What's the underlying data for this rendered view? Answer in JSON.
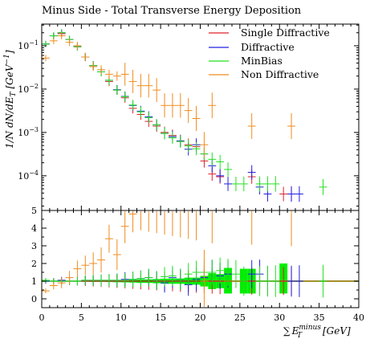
{
  "chart_data": {
    "type": "scatter",
    "title": "Minus Side - Total Transverse Energy Deposition",
    "xlabel": "∑E_T^minus [GeV]",
    "xlabel_sum": "∑",
    "xlabel_E": "E",
    "xlabel_sub": "T",
    "xlabel_sup": "minus",
    "xlabel_unit": "[GeV]",
    "ylabel": "1/N dN/dE_T [GeV^-1]",
    "ylabel_main": "1/N dN/dE",
    "ylabel_sub": "T",
    "ylabel_unit_open": " [GeV",
    "ylabel_sup": "−1",
    "ylabel_unit_close": "]",
    "xlim": [
      0,
      40
    ],
    "main_ylim_log10": [
      -4.8,
      -0.5
    ],
    "ratio_ylim": [
      -0.5,
      5
    ],
    "x_ticks": [
      "0",
      "5",
      "10",
      "15",
      "20",
      "25",
      "30",
      "35",
      "40"
    ],
    "x_tick_values": [
      0,
      5,
      10,
      15,
      20,
      25,
      30,
      35,
      40
    ],
    "main_y_ticks": [
      {
        "mant": "10",
        "exp": "−1",
        "log": -1
      },
      {
        "mant": "10",
        "exp": "−2",
        "log": -2
      },
      {
        "mant": "10",
        "exp": "−3",
        "log": -3
      },
      {
        "mant": "10",
        "exp": "−4",
        "log": -4
      }
    ],
    "ratio_y_ticks": [
      "0",
      "1",
      "2",
      "3",
      "4",
      "5"
    ],
    "ratio_y_tick_values": [
      0,
      1,
      2,
      3,
      4,
      5
    ],
    "bin_width": 1,
    "legend_position": "top-right",
    "series": [
      {
        "name": "Single Diffractive",
        "color": "#e0202a",
        "x": [
          0.5,
          1.5,
          2.5,
          3.5,
          4.5,
          5.5,
          6.5,
          7.5,
          8.5,
          9.5,
          10.5,
          11.5,
          12.5,
          13.5,
          14.5,
          15.5,
          16.5,
          17.5,
          18.5,
          19.5,
          20.5,
          21.5,
          22.5,
          26.5,
          30.5,
          31.5
        ],
        "y": [
          0.11,
          0.17,
          0.19,
          0.14,
          0.095,
          0.055,
          0.035,
          0.025,
          0.015,
          0.0095,
          0.0063,
          0.0036,
          0.0026,
          0.0018,
          0.0014,
          0.001,
          0.00085,
          0.00062,
          0.00052,
          0.00047,
          0.00022,
          0.00011,
          9.5e-05,
          9.5e-05,
          3.8e-05,
          3.8e-05
        ],
        "ratio": [
          1,
          1,
          1,
          1,
          1,
          1,
          1,
          1,
          1,
          1,
          1,
          1,
          1,
          1,
          1,
          1,
          1,
          1,
          1,
          1,
          1,
          1,
          1,
          1,
          1,
          1
        ]
      },
      {
        "name": "Diffractive",
        "color": "#2020e0",
        "x": [
          0.5,
          1.5,
          2.5,
          3.5,
          4.5,
          5.5,
          6.5,
          7.5,
          8.5,
          9.5,
          10.5,
          11.5,
          12.5,
          13.5,
          14.5,
          15.5,
          16.5,
          17.5,
          18.5,
          19.5,
          20.5,
          21.5,
          22.5,
          23.5,
          26.5,
          27.5,
          28.5,
          31.5,
          32.5
        ],
        "y": [
          0.11,
          0.17,
          0.2,
          0.14,
          0.095,
          0.055,
          0.035,
          0.025,
          0.016,
          0.0097,
          0.0068,
          0.0042,
          0.0031,
          0.0023,
          0.0015,
          0.00095,
          0.0008,
          0.00064,
          0.00041,
          0.00052,
          0.00032,
          0.00017,
          0.0001,
          6.5e-05,
          0.00012,
          5.5e-05,
          3.8e-05,
          3.8e-05,
          3.8e-05
        ],
        "ratio": [
          1.0,
          1.0,
          1.05,
          1.0,
          1.0,
          1.05,
          1.05,
          1.05,
          1.05,
          1.05,
          1.1,
          1.1,
          1.15,
          1.2,
          1.05,
          0.9,
          1.2,
          1.1,
          0.8,
          1.1,
          1.2,
          1.5,
          1.3,
          1.4,
          1.4,
          1.4,
          1.0,
          1.0,
          1.0
        ]
      },
      {
        "name": "MinBias",
        "color": "#20e020",
        "x": [
          0.5,
          1.5,
          2.5,
          3.5,
          4.5,
          5.5,
          6.5,
          7.5,
          8.5,
          9.5,
          10.5,
          11.5,
          12.5,
          13.5,
          14.5,
          15.5,
          16.5,
          17.5,
          18.5,
          19.5,
          20.5,
          21.5,
          22.5,
          23.5,
          24.5,
          25.5,
          27.5,
          28.5,
          29.5,
          35.5
        ],
        "y": [
          0.11,
          0.17,
          0.2,
          0.14,
          0.095,
          0.055,
          0.035,
          0.025,
          0.016,
          0.0095,
          0.0067,
          0.0043,
          0.003,
          0.0022,
          0.0015,
          0.00095,
          0.00075,
          0.00062,
          0.00049,
          0.00042,
          0.00032,
          0.00024,
          0.00021,
          0.00014,
          6.5e-05,
          6.5e-05,
          6.5e-05,
          6.5e-05,
          6.5e-05,
          5.5e-05
        ],
        "ratio": [
          1.05,
          1.0,
          1.0,
          1.0,
          1.0,
          1.05,
          1.05,
          1.05,
          1.05,
          1.05,
          1.05,
          1.1,
          1.15,
          1.2,
          1.05,
          1.25,
          1.3,
          1.1,
          1.4,
          1.5,
          1.5,
          1.5,
          1.6,
          1.5,
          1.4,
          1.0,
          1.0,
          1.0,
          1.0,
          1.0
        ]
      },
      {
        "name": "Non Diffractive",
        "color": "#f08c1e",
        "x": [
          0.5,
          1.5,
          2.5,
          3.5,
          4.5,
          5.5,
          6.5,
          7.5,
          8.5,
          9.5,
          10.5,
          11.5,
          12.5,
          13.5,
          14.5,
          15.5,
          16.5,
          17.5,
          18.5,
          19.5,
          20.5,
          21.5,
          26.5,
          31.5
        ],
        "y": [
          0.052,
          0.13,
          0.17,
          0.12,
          0.1,
          0.055,
          0.033,
          0.028,
          0.022,
          0.02,
          0.022,
          0.015,
          0.012,
          0.012,
          0.0095,
          0.0042,
          0.0042,
          0.0042,
          0.0032,
          0.0021,
          0.00052,
          0.0042,
          0.0014,
          0.0014
        ],
        "ratio": [
          0.45,
          0.75,
          0.9,
          1.2,
          1.7,
          1.9,
          2.0,
          2.2,
          3.4,
          2.5,
          4.1,
          4.8,
          5.0,
          5.0,
          5.0,
          5.0,
          5.0,
          5.0,
          5.0,
          5.0,
          1.0,
          5.0,
          5.0,
          5.0
        ]
      }
    ],
    "uncertainty_band": {
      "name": "MinBias",
      "color": "#00ee00",
      "x": [
        5.5,
        6.5,
        7.5,
        8.5,
        9.5,
        10.5,
        11.5,
        12.5,
        13.5,
        14.5,
        15.5,
        16.5,
        17.5,
        18.5,
        19.5,
        20.5,
        21.5,
        22.5,
        23.5,
        25.5,
        26.5,
        30.5
      ],
      "low": [
        0.97,
        0.96,
        0.96,
        0.95,
        0.94,
        0.93,
        0.92,
        0.9,
        0.9,
        0.88,
        0.86,
        0.85,
        0.85,
        0.8,
        0.8,
        0.7,
        0.55,
        0.6,
        0.3,
        0.3,
        0.3,
        0.3
      ],
      "high": [
        1.03,
        1.04,
        1.04,
        1.05,
        1.06,
        1.07,
        1.08,
        1.1,
        1.1,
        1.12,
        1.14,
        1.15,
        1.15,
        1.2,
        1.2,
        1.3,
        1.45,
        1.4,
        1.75,
        1.7,
        1.7,
        2.0
      ]
    }
  }
}
